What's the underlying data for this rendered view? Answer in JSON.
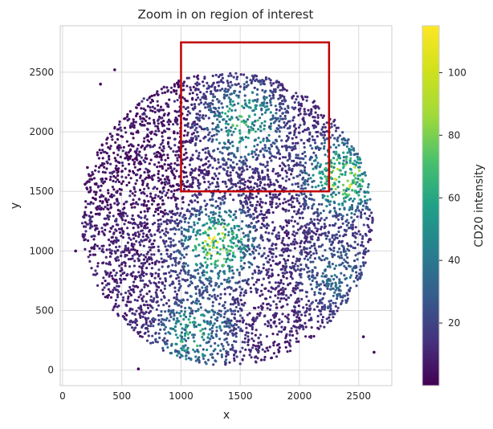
{
  "chart_data": {
    "type": "scatter",
    "title": "Zoom in on region of interest",
    "xlabel": "x",
    "ylabel": "y",
    "xlim": [
      -20,
      2780
    ],
    "ylim": [
      -130,
      2890
    ],
    "xticks": [
      0,
      500,
      1000,
      1500,
      2000,
      2500
    ],
    "yticks": [
      0,
      500,
      1000,
      1500,
      2000,
      2500
    ],
    "grid": true,
    "point_cloud": {
      "shape": "disc",
      "center": [
        1390,
        1270
      ],
      "radius": 1230,
      "colored_by": "CD20 intensity",
      "hotspots": [
        {
          "x": 1300,
          "y": 1050,
          "value": 110
        },
        {
          "x": 1530,
          "y": 2080,
          "value": 85
        },
        {
          "x": 2370,
          "y": 1620,
          "value": 110
        },
        {
          "x": 1120,
          "y": 300,
          "value": 75
        },
        {
          "x": 2300,
          "y": 800,
          "value": 40
        }
      ],
      "gaps": [
        {
          "x": 1820,
          "y": 1280
        },
        {
          "x": 1600,
          "y": 600
        },
        {
          "x": 1700,
          "y": 300
        }
      ]
    },
    "outliers": [
      {
        "x": 440,
        "y": 2520
      },
      {
        "x": 320,
        "y": 2400
      },
      {
        "x": 640,
        "y": 10
      },
      {
        "x": 2540,
        "y": 280
      },
      {
        "x": 2630,
        "y": 150
      },
      {
        "x": 110,
        "y": 1000
      },
      {
        "x": 190,
        "y": 1560
      },
      {
        "x": 210,
        "y": 1700
      }
    ],
    "highlight_box": {
      "x": [
        1000,
        2250
      ],
      "y": [
        1500,
        2750
      ],
      "color": "#c00000"
    },
    "colorbar": {
      "label": "CD20 intensity",
      "colormap": "viridis",
      "min": 0,
      "max": 115,
      "ticks": [
        20,
        40,
        60,
        80,
        100
      ]
    }
  }
}
